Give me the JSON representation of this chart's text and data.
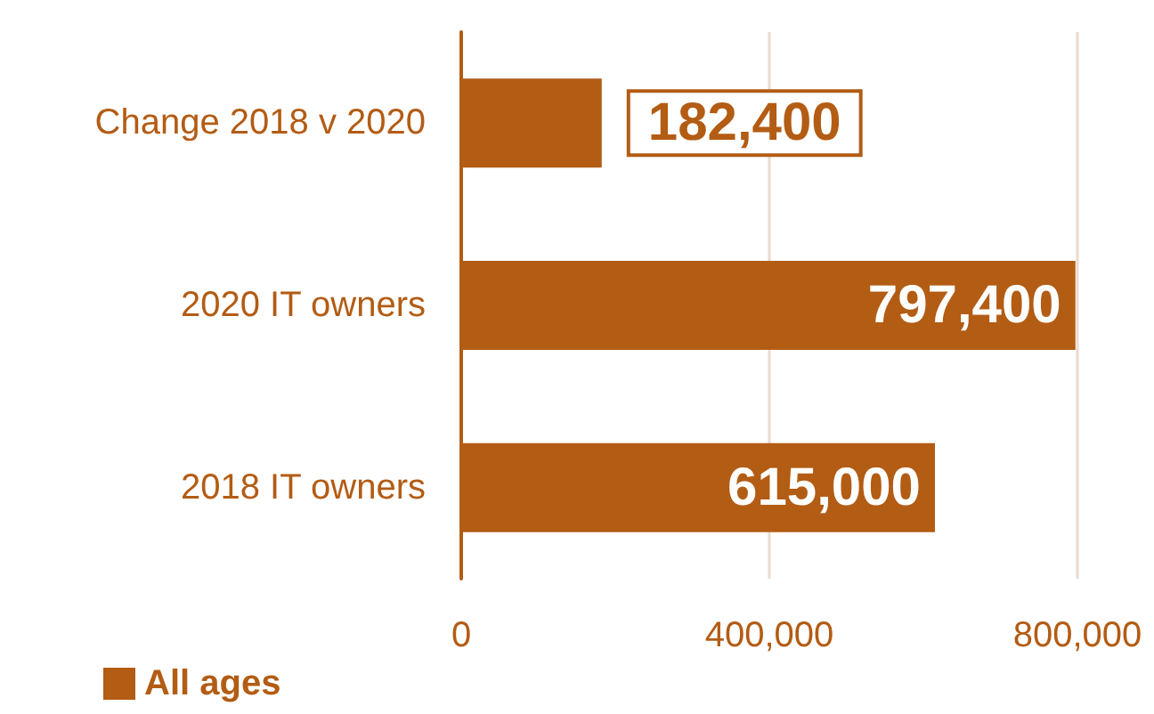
{
  "chart_data": {
    "type": "bar",
    "orientation": "horizontal",
    "categories": [
      "Change 2018 v 2020",
      "2020 IT owners",
      "2018 IT owners"
    ],
    "series": [
      {
        "name": "All ages",
        "color": "#b35c14",
        "values": [
          182400,
          797400,
          615000
        ],
        "value_labels": [
          "182,400",
          "797,400",
          "615,000"
        ]
      }
    ],
    "xlim": [
      0,
      800000
    ],
    "xticks": [
      {
        "value": 0,
        "label": "0"
      },
      {
        "value": 400000,
        "label": "400,000"
      },
      {
        "value": 800000,
        "label": "800,000"
      }
    ],
    "grid": "x",
    "legend": "bottom left"
  }
}
